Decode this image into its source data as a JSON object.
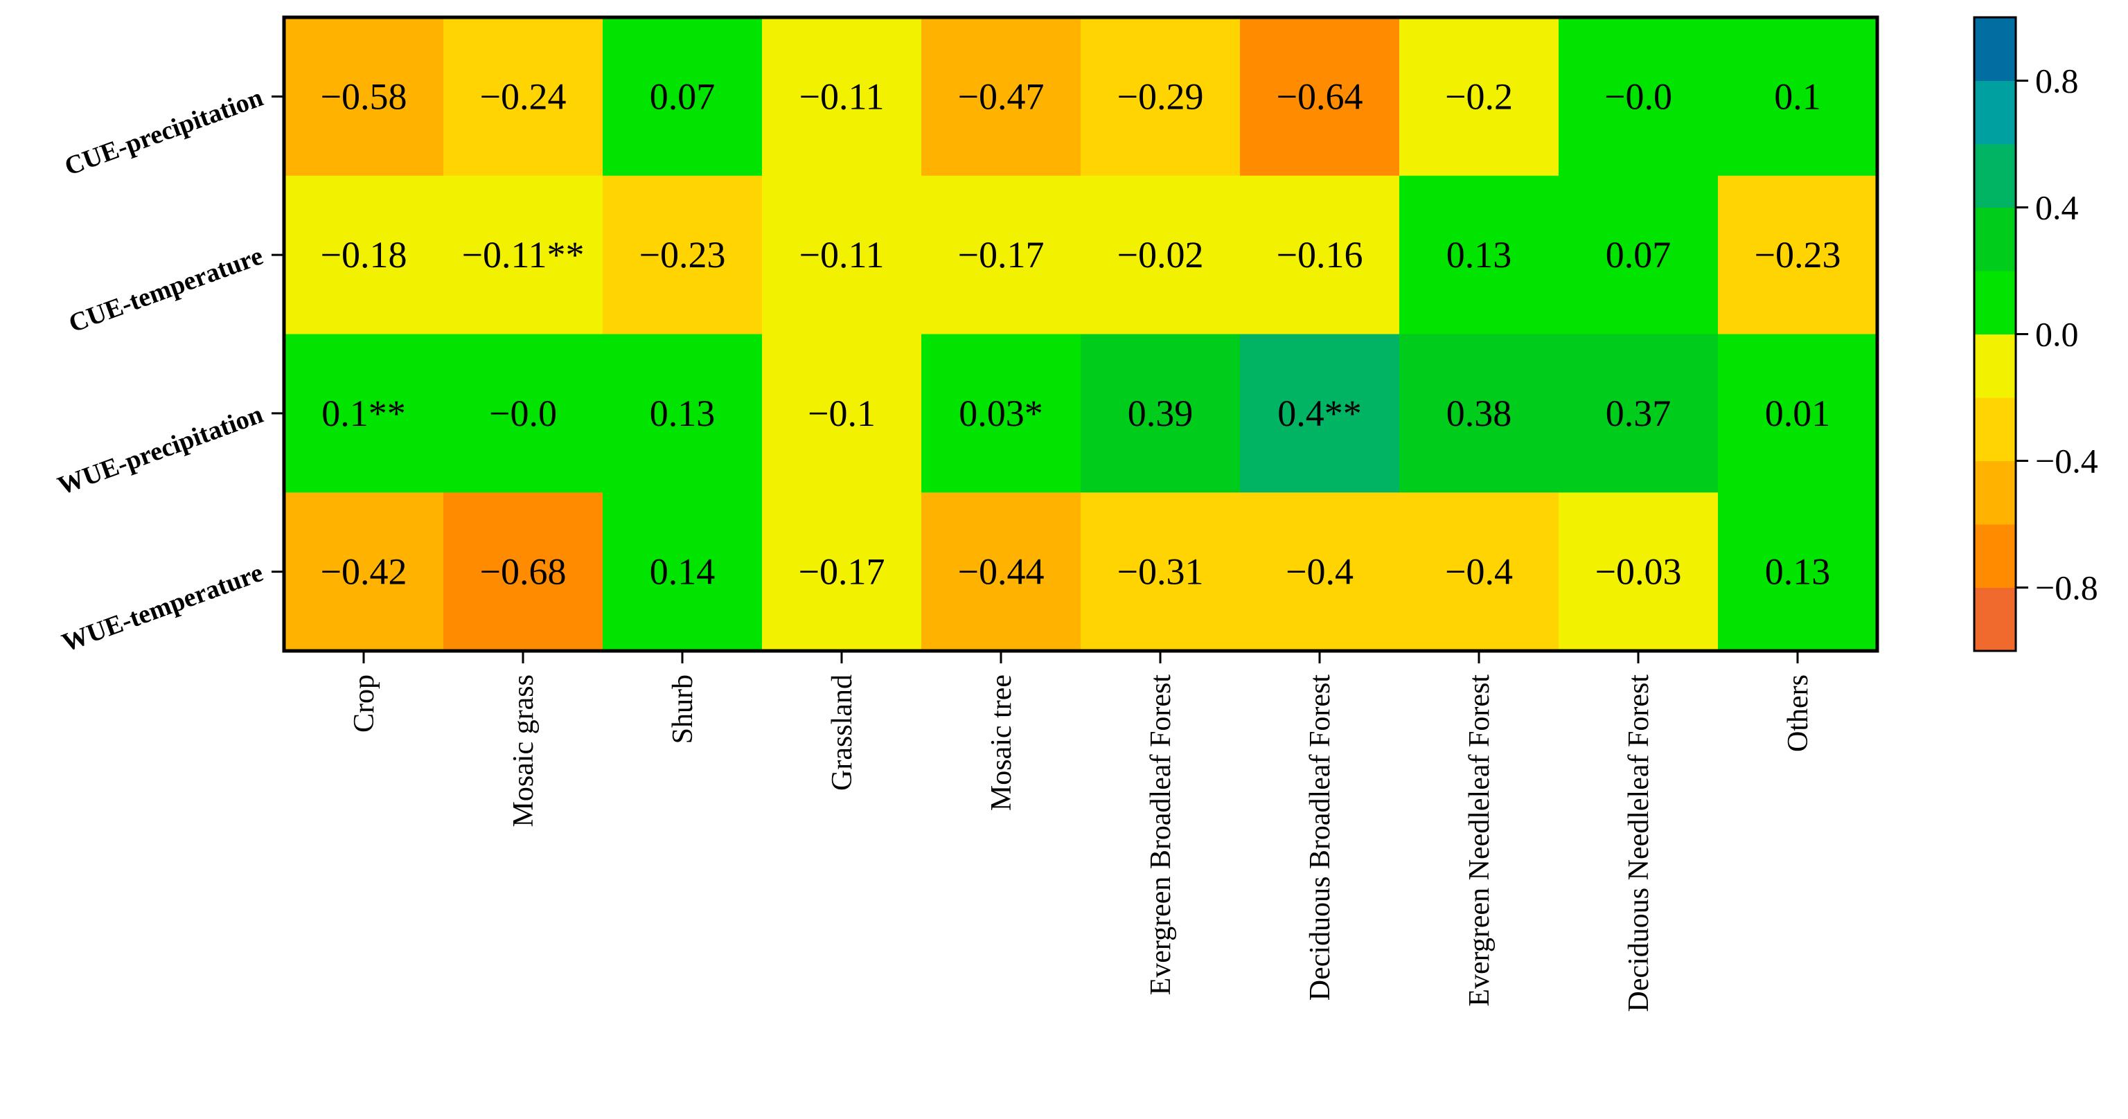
{
  "chart_data": {
    "type": "heatmap",
    "rows": [
      "CUE-precipitation",
      "CUE-temperature",
      "WUE-precipitation",
      "WUE-temperature"
    ],
    "columns": [
      "Crop",
      "Mosaic grass",
      "Shurb",
      "Grassland",
      "Mosaic tree",
      "Evergreen Broadleaf Forest",
      "Deciduous Broadleaf Forest",
      "Evergreen Needleleaf Forest",
      "Deciduous Needleleaf Forest",
      "Others"
    ],
    "values": [
      [
        -0.58,
        -0.24,
        0.07,
        -0.11,
        -0.47,
        -0.29,
        -0.64,
        -0.2,
        -0.0,
        0.1
      ],
      [
        -0.18,
        -0.11,
        -0.23,
        -0.11,
        -0.17,
        -0.02,
        -0.16,
        0.13,
        0.07,
        -0.23
      ],
      [
        0.1,
        -0.0,
        0.13,
        -0.1,
        0.03,
        0.39,
        0.4,
        0.38,
        0.37,
        0.01
      ],
      [
        -0.42,
        -0.68,
        0.14,
        -0.17,
        -0.44,
        -0.31,
        -0.4,
        -0.4,
        -0.03,
        0.13
      ]
    ],
    "labels": [
      [
        "−0.58",
        "−0.24",
        "0.07",
        "−0.11",
        "−0.47",
        "−0.29",
        "−0.64",
        "−0.2",
        "−0.0",
        "0.1"
      ],
      [
        "−0.18",
        "−0.11**",
        "−0.23",
        "−0.11",
        "−0.17",
        "−0.02",
        "−0.16",
        "0.13",
        "0.07",
        "−0.23"
      ],
      [
        "0.1**",
        "−0.0",
        "0.13",
        "−0.1",
        "0.03*",
        "0.39",
        "0.4**",
        "0.38",
        "0.37",
        "0.01"
      ],
      [
        "−0.42",
        "−0.68",
        "0.14",
        "−0.17",
        "−0.44",
        "−0.31",
        "−0.4",
        "−0.4",
        "−0.03",
        "0.13"
      ]
    ],
    "colorbar": {
      "range": [
        -1.0,
        1.0
      ],
      "bounds": [
        -1.0,
        -0.8,
        -0.6,
        -0.4,
        -0.2,
        0.0,
        0.2,
        0.4,
        0.6,
        0.8,
        1.0
      ],
      "colors": [
        "#ef6a2c",
        "#ff8c00",
        "#ffb300",
        "#ffd400",
        "#f2f200",
        "#00e400",
        "#00cc1c",
        "#00b464",
        "#00a0a0",
        "#006ea0"
      ],
      "ticks": [
        -0.8,
        -0.4,
        0.0,
        0.4,
        0.8
      ],
      "tick_labels": [
        "−0.8",
        "−0.4",
        "0.0",
        "0.4",
        "0.8"
      ]
    }
  }
}
